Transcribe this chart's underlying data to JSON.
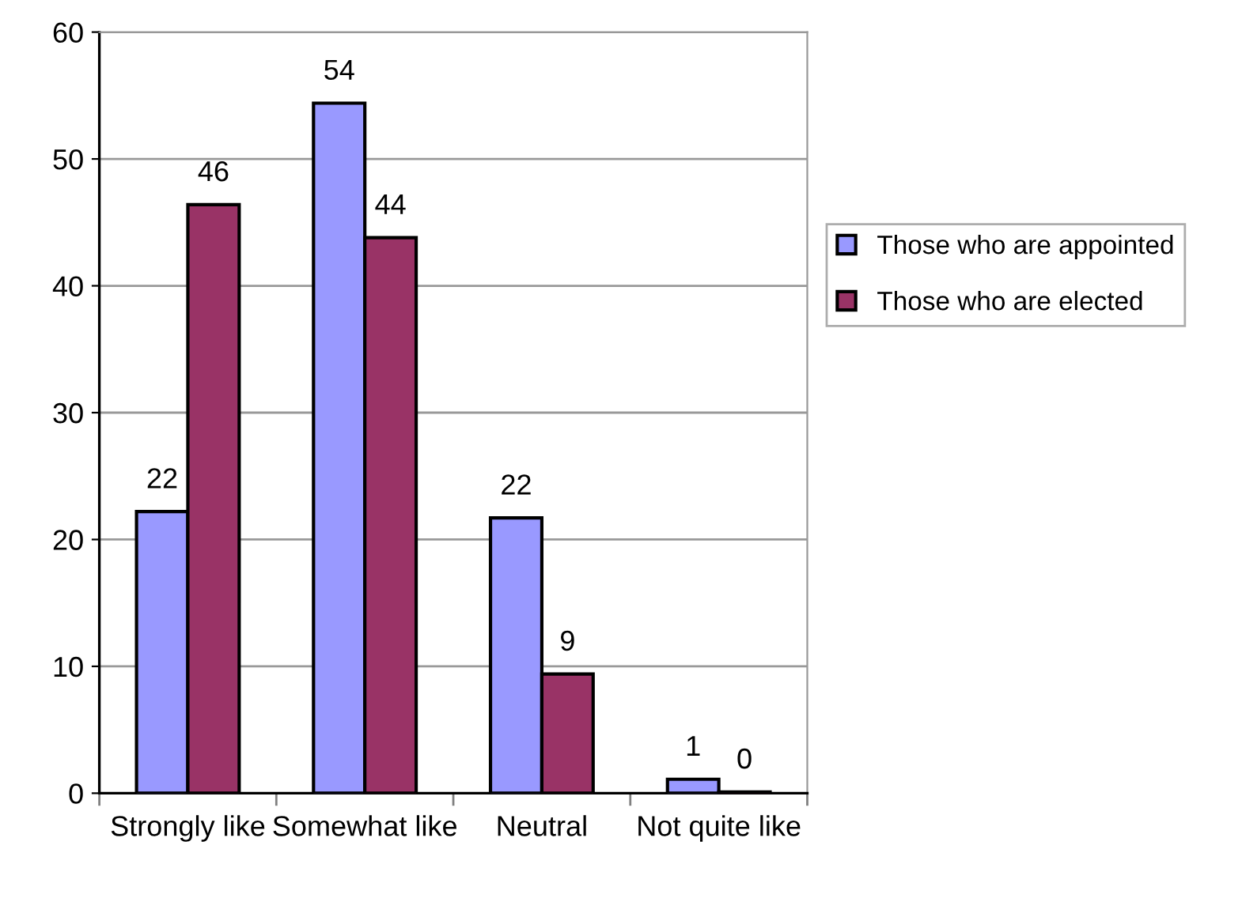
{
  "chart_data": {
    "type": "bar",
    "categories": [
      "Strongly like",
      "Somewhat like",
      "Neutral",
      "Not quite like"
    ],
    "series": [
      {
        "name": "Those who are appointed",
        "color": "#9999ff",
        "values": [
          22.2,
          54.4,
          21.7,
          1.1
        ],
        "value_labels": [
          "22",
          "54",
          "22",
          "1"
        ]
      },
      {
        "name": "Those who are elected",
        "color": "#993366",
        "values": [
          46.4,
          43.8,
          9.4,
          0.1
        ],
        "value_labels": [
          "46",
          "44",
          "9",
          "0"
        ]
      }
    ],
    "ylim": [
      0,
      60
    ],
    "yticks": [
      0,
      10,
      20,
      30,
      40,
      50,
      60
    ],
    "grid": "y",
    "legend": "right"
  }
}
